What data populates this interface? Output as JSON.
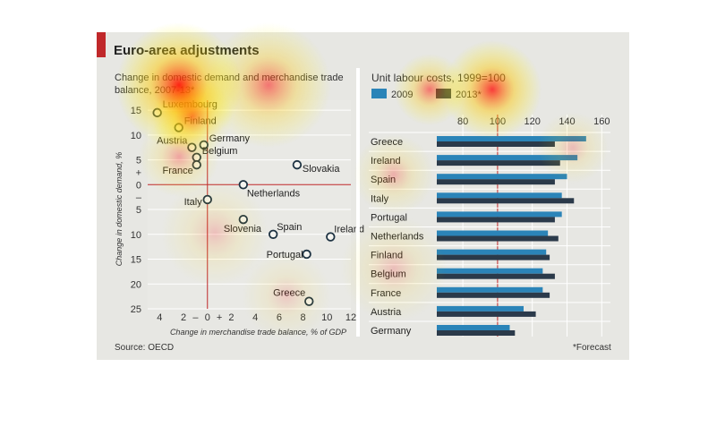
{
  "title": "Euro-area adjustments",
  "source": "Source: OECD",
  "footnote": "*Forecast",
  "colors": {
    "accent": "#c0282a",
    "series_2009": "#2b84b8",
    "series_2013": "#2b3a4a"
  },
  "chart_data": [
    {
      "type": "scatter",
      "title": "Change in domestic demand and merchandise trade balance, 2007-13*",
      "xlabel": "Change in merchandise trade balance, % of GDP",
      "ylabel": "Change in domestic demand, %",
      "xlim": [
        -5,
        12
      ],
      "ylim": [
        -25,
        17
      ],
      "xtick_labels": [
        "4",
        "2",
        "–",
        "0",
        "+",
        "2",
        "4",
        "6",
        "8",
        "10",
        "12"
      ],
      "ytick_labels": [
        "15",
        "10",
        "5",
        "+",
        "0",
        "–",
        "5",
        "10",
        "15",
        "20",
        "25"
      ],
      "points": [
        {
          "label": "Luxembourg",
          "x": -4.2,
          "y": 14.5
        },
        {
          "label": "Finland",
          "x": -2.4,
          "y": 11.5
        },
        {
          "label": "Austria",
          "x": -1.3,
          "y": 7.5
        },
        {
          "label": "Germany",
          "x": -0.3,
          "y": 8.0
        },
        {
          "label": "Belgium",
          "x": -0.9,
          "y": 5.5
        },
        {
          "label": "France",
          "x": -0.9,
          "y": 4.0
        },
        {
          "label": "Slovakia",
          "x": 7.5,
          "y": 4.0
        },
        {
          "label": "Netherlands",
          "x": 3.0,
          "y": 0.0
        },
        {
          "label": "Italy",
          "x": 0.0,
          "y": -3.0
        },
        {
          "label": "Slovenia",
          "x": 3.0,
          "y": -7.0
        },
        {
          "label": "Spain",
          "x": 5.5,
          "y": -10.0
        },
        {
          "label": "Ireland",
          "x": 10.3,
          "y": -10.5
        },
        {
          "label": "Portugal",
          "x": 8.3,
          "y": -14.0
        },
        {
          "label": "Greece",
          "x": 8.5,
          "y": -23.5
        }
      ]
    },
    {
      "type": "bar",
      "orientation": "horizontal",
      "title": "Unit labour costs, 1999=100",
      "categories": [
        "Greece",
        "Ireland",
        "Spain",
        "Italy",
        "Portugal",
        "Netherlands",
        "Finland",
        "Belgium",
        "France",
        "Austria",
        "Germany"
      ],
      "series": [
        {
          "name": "2009",
          "values": [
            151,
            146,
            140,
            137,
            137,
            129,
            128,
            126,
            126,
            115,
            107
          ]
        },
        {
          "name": "2013*",
          "values": [
            133,
            136,
            133,
            144,
            133,
            135,
            130,
            133,
            130,
            122,
            110
          ]
        }
      ],
      "xlim": [
        65,
        165
      ],
      "xtick_labels": [
        "80",
        "100",
        "120",
        "140",
        "160"
      ],
      "xticks": [
        80,
        100,
        120,
        140,
        160
      ],
      "legend": "top-left"
    }
  ]
}
